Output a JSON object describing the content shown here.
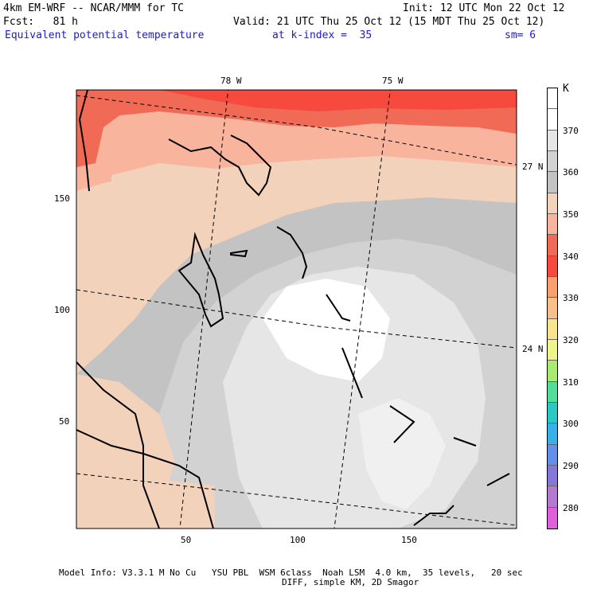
{
  "header": {
    "model": "4km EM-WRF -- NCAR/MMM for TC",
    "init": "Init: 12 UTC Mon 22 Oct 12",
    "fcst": "Fcst:   81 h",
    "valid": "Valid: 21 UTC Thu 25 Oct 12 (15 MDT Thu 25 Oct 12)",
    "field": "Equivalent potential temperature",
    "kindex": "at k-index =  35",
    "sm": "sm= 6"
  },
  "map": {
    "lon_labels": [
      "78 W",
      "75 W"
    ],
    "lat_labels": [
      "27 N",
      "24 N"
    ],
    "x_ticks": [
      "50",
      "100",
      "150"
    ],
    "y_ticks": [
      "150",
      "100",
      "50"
    ]
  },
  "colorbar": {
    "unit": "K",
    "levels": [
      {
        "value": "",
        "color": "#ffffff"
      },
      {
        "value": "370",
        "color": "#ffffff"
      },
      {
        "value": "",
        "color": "#e6e6e6"
      },
      {
        "value": "360",
        "color": "#d2d2d2"
      },
      {
        "value": "",
        "color": "#c3c3c3"
      },
      {
        "value": "350",
        "color": "#f2d2bb"
      },
      {
        "value": "",
        "color": "#f9b49e"
      },
      {
        "value": "340",
        "color": "#f06a55"
      },
      {
        "value": "",
        "color": "#f74a3e"
      },
      {
        "value": "330",
        "color": "#f8a070"
      },
      {
        "value": "",
        "color": "#f9c08b"
      },
      {
        "value": "320",
        "color": "#fbe28c"
      },
      {
        "value": "",
        "color": "#eef48a"
      },
      {
        "value": "310",
        "color": "#a8ea72"
      },
      {
        "value": "",
        "color": "#52dd9a"
      },
      {
        "value": "300",
        "color": "#2ac9c4"
      },
      {
        "value": "",
        "color": "#3ab0e8"
      },
      {
        "value": "290",
        "color": "#6490ea"
      },
      {
        "value": "",
        "color": "#8478d8"
      },
      {
        "value": "280",
        "color": "#b47ad0"
      },
      {
        "value": "",
        "color": "#e060dc"
      }
    ]
  },
  "footer": {
    "line1": "Model Info: V3.3.1 M No Cu   YSU PBL  WSM 6class  Noah LSM  4.0 km,  35 levels,   20 sec",
    "line2": "DIFF, simple KM, 2D Smagor"
  }
}
